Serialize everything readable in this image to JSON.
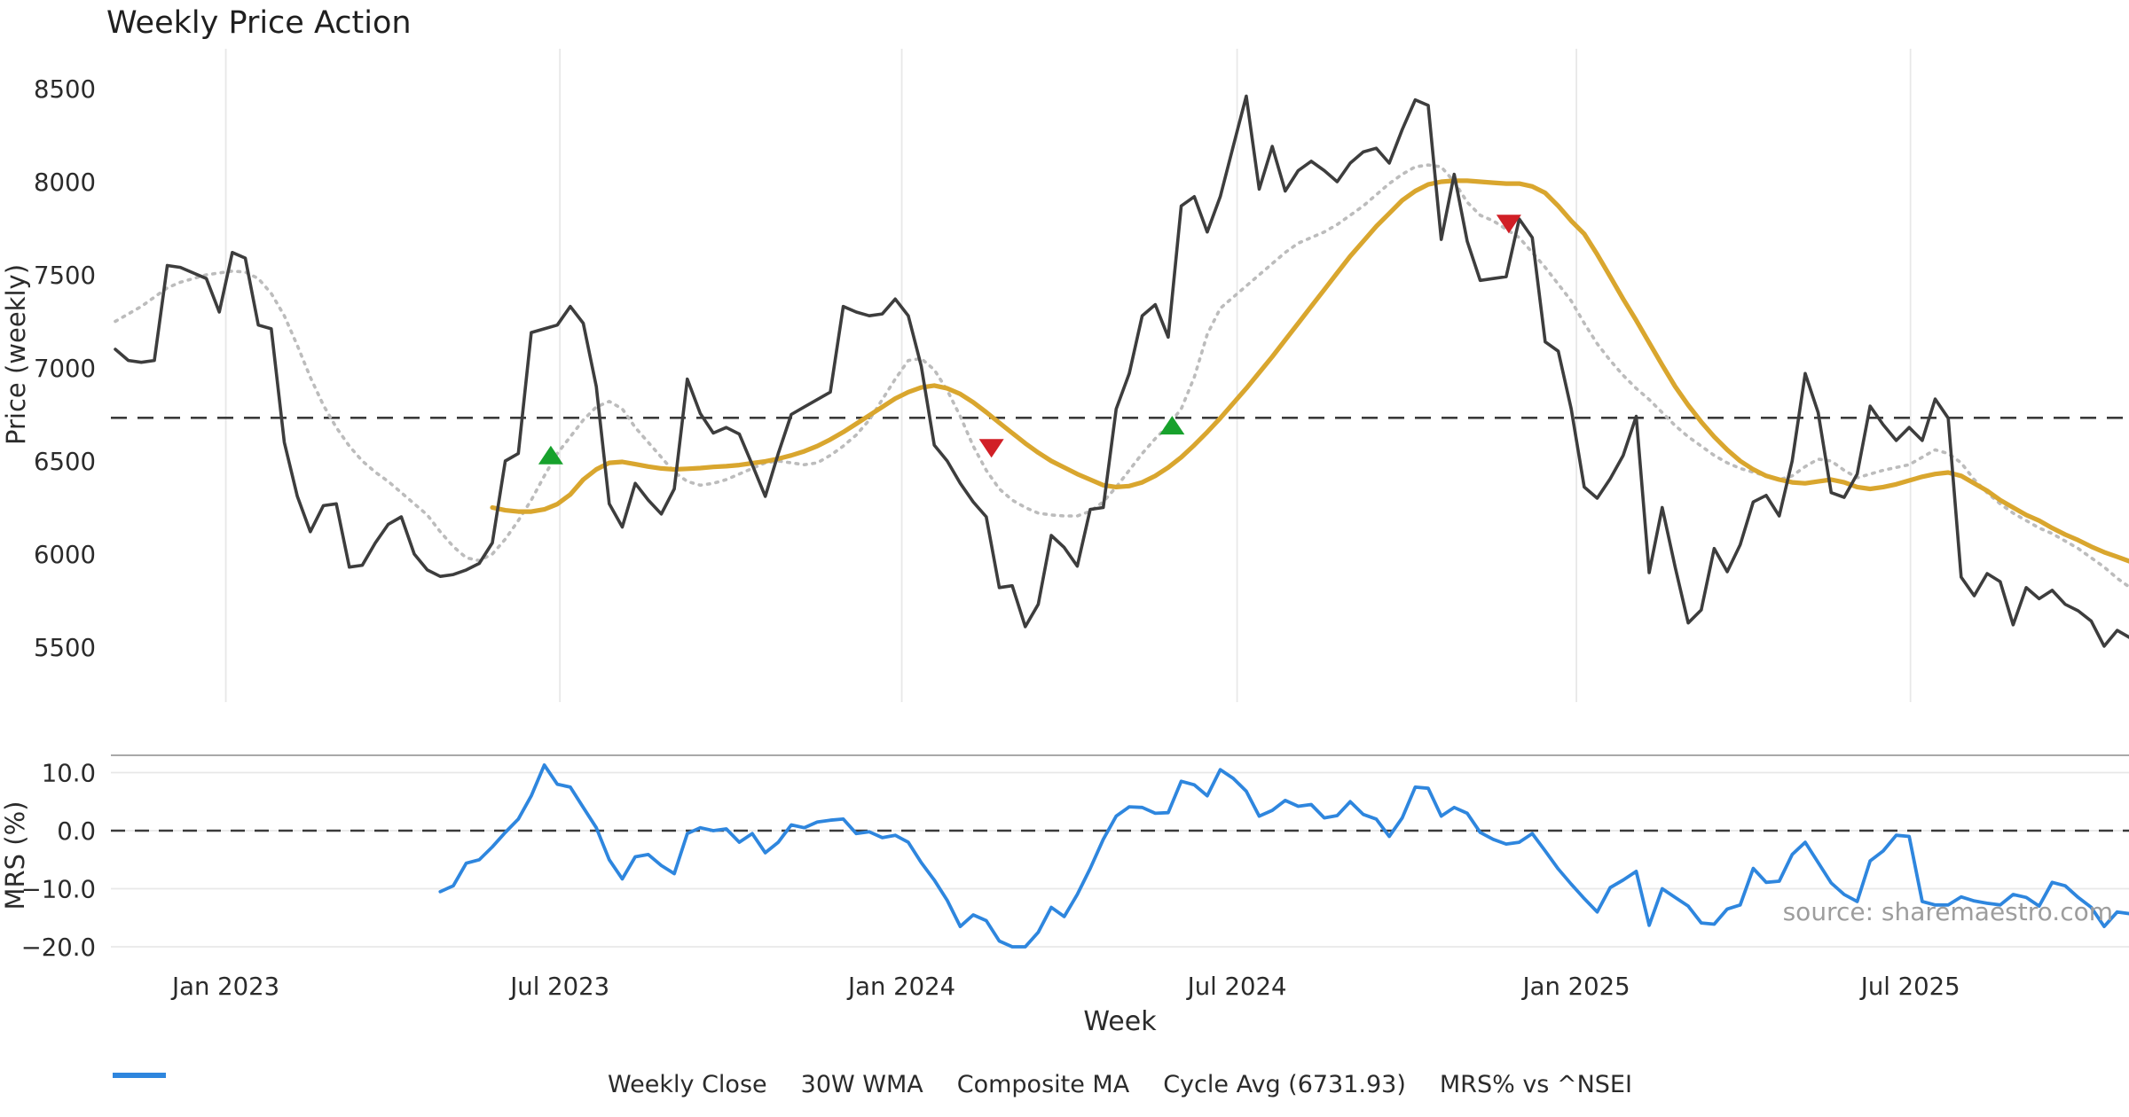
{
  "chart": {
    "title": "Weekly Price Action",
    "price_axis": {
      "label": "Price (weekly)",
      "ticks": [
        8500,
        8000,
        7500,
        7000,
        6500,
        6000,
        5500
      ]
    },
    "mrs_axis": {
      "label": "MRS (%)",
      "ticks": [
        10.0,
        0.0,
        -10.0,
        -20.0
      ],
      "tick_labels": [
        "10.0",
        "0.0",
        "−10.0",
        "−20.0"
      ]
    },
    "x_axis": {
      "label": "Week",
      "tick_labels": [
        "Jan 2023",
        "Jul 2023",
        "Jan 2024",
        "Jul 2024",
        "Jan 2025",
        "Jul 2025"
      ]
    },
    "source": "source: sharemaestro.com",
    "colors": {
      "weekly_close": "#3d3d3d",
      "wma_30w": "#d9a62e",
      "composite_ma": "#bcbcbc",
      "cycle_avg": "#3a3a3a",
      "mrs": "#2e86de",
      "buy_marker": "#17a12c",
      "sell_marker": "#d11f26",
      "grid": "#e8e8e8",
      "panel_spine": "#a8a8a8"
    },
    "legend": {
      "items": [
        {
          "label": "Weekly Close",
          "color": "#3d3d3d",
          "style": "solid"
        },
        {
          "label": "30W WMA",
          "color": "#d9a62e",
          "style": "solid"
        },
        {
          "label": "Composite MA",
          "color": "#bcbcbc",
          "style": "dotted"
        },
        {
          "label": "Cycle Avg (6731.93)",
          "color": "#3a3a3a",
          "style": "dashed"
        },
        {
          "label": "MRS% vs ^NSEI",
          "color": "#2e86de",
          "style": "solid"
        }
      ]
    }
  },
  "chart_data": {
    "type": "line",
    "x_unit": "week-index (weekly data, ~Nov 2022 to Nov 2025)",
    "x_tick_weeks": [
      8.5,
      34.2,
      60.5,
      86.3,
      112.4,
      138.1
    ],
    "price_ylim": [
      5350,
      8700
    ],
    "mrs_ylim": [
      -23,
      13
    ],
    "cycle_avg": 6731.93,
    "series": [
      {
        "name": "Weekly Close",
        "panel": "price",
        "start_week": 0,
        "values": [
          7100,
          7040,
          7030,
          7040,
          7550,
          7540,
          7510,
          7480,
          7300,
          7620,
          7590,
          7230,
          7210,
          6600,
          6310,
          6120,
          6260,
          6270,
          5930,
          5940,
          6060,
          6160,
          6200,
          6000,
          5915,
          5880,
          5890,
          5915,
          5950,
          6060,
          6500,
          6540,
          7190,
          7210,
          7230,
          7330,
          7240,
          6900,
          6270,
          6145,
          6380,
          6290,
          6215,
          6350,
          6940,
          6755,
          6650,
          6680,
          6645,
          6480,
          6310,
          6540,
          6750,
          6790,
          6830,
          6870,
          7330,
          7300,
          7280,
          7290,
          7370,
          7280,
          7010,
          6585,
          6500,
          6380,
          6280,
          6200,
          5820,
          5830,
          5610,
          5730,
          6100,
          6035,
          5935,
          6240,
          6250,
          6780,
          6970,
          7280,
          7340,
          7165,
          7870,
          7920,
          7730,
          7920,
          8190,
          8460,
          7960,
          8190,
          7950,
          8060,
          8110,
          8060,
          8000,
          8100,
          8160,
          8180,
          8100,
          8280,
          8440,
          8410,
          7690,
          8040,
          7680,
          7470,
          7480,
          7490,
          7800,
          7700,
          7140,
          7090,
          6780,
          6360,
          6300,
          6405,
          6530,
          6740,
          5900,
          6250,
          5930,
          5630,
          5700,
          6030,
          5905,
          6050,
          6280,
          6315,
          6205,
          6500,
          6970,
          6760,
          6330,
          6305,
          6430,
          6795,
          6695,
          6610,
          6680,
          6610,
          6833,
          6730,
          5876,
          5776,
          5895,
          5852,
          5620,
          5820,
          5760,
          5805,
          5730,
          5695,
          5640,
          5505,
          5590,
          5550
        ]
      },
      {
        "name": "30W WMA",
        "panel": "price",
        "start_week": 29,
        "values": [
          6250,
          6235,
          6228,
          6228,
          6240,
          6268,
          6320,
          6400,
          6455,
          6490,
          6495,
          6483,
          6470,
          6460,
          6455,
          6458,
          6462,
          6468,
          6472,
          6478,
          6488,
          6498,
          6512,
          6530,
          6552,
          6580,
          6615,
          6655,
          6700,
          6745,
          6790,
          6835,
          6870,
          6895,
          6905,
          6890,
          6860,
          6815,
          6762,
          6705,
          6650,
          6595,
          6545,
          6500,
          6465,
          6430,
          6400,
          6370,
          6360,
          6365,
          6385,
          6420,
          6465,
          6520,
          6585,
          6655,
          6730,
          6810,
          6890,
          6975,
          7060,
          7150,
          7240,
          7330,
          7420,
          7510,
          7600,
          7680,
          7760,
          7830,
          7900,
          7950,
          7985,
          8000,
          8005,
          8005,
          8000,
          7995,
          7990,
          7990,
          7975,
          7940,
          7870,
          7790,
          7720,
          7610,
          7490,
          7370,
          7255,
          7135,
          7015,
          6900,
          6800,
          6710,
          6630,
          6560,
          6500,
          6455,
          6420,
          6400,
          6385,
          6380,
          6390,
          6400,
          6385,
          6360,
          6350,
          6360,
          6375,
          6395,
          6415,
          6430,
          6438,
          6420,
          6380,
          6340,
          6290,
          6250,
          6210,
          6180,
          6140,
          6105,
          6075,
          6040,
          6010,
          5985,
          5960
        ]
      },
      {
        "name": "Composite MA",
        "panel": "price",
        "start_week": 0,
        "values": [
          7250,
          7290,
          7330,
          7380,
          7430,
          7460,
          7480,
          7500,
          7510,
          7520,
          7515,
          7480,
          7400,
          7280,
          7120,
          6950,
          6800,
          6680,
          6580,
          6500,
          6440,
          6390,
          6330,
          6270,
          6210,
          6120,
          6040,
          5980,
          5965,
          6000,
          6080,
          6180,
          6290,
          6420,
          6540,
          6630,
          6720,
          6790,
          6820,
          6780,
          6680,
          6600,
          6520,
          6440,
          6390,
          6370,
          6380,
          6400,
          6430,
          6460,
          6490,
          6500,
          6490,
          6480,
          6490,
          6530,
          6580,
          6640,
          6720,
          6830,
          6940,
          7040,
          7050,
          6990,
          6880,
          6740,
          6580,
          6450,
          6350,
          6290,
          6250,
          6220,
          6210,
          6205,
          6205,
          6230,
          6280,
          6360,
          6450,
          6540,
          6620,
          6690,
          6780,
          6950,
          7180,
          7320,
          7380,
          7440,
          7500,
          7560,
          7620,
          7670,
          7700,
          7730,
          7770,
          7820,
          7870,
          7930,
          7990,
          8040,
          8080,
          8090,
          8080,
          8000,
          7890,
          7820,
          7790,
          7745,
          7700,
          7620,
          7540,
          7450,
          7360,
          7240,
          7130,
          7040,
          6960,
          6890,
          6830,
          6760,
          6690,
          6630,
          6580,
          6530,
          6490,
          6460,
          6440,
          6420,
          6400,
          6420,
          6470,
          6510,
          6500,
          6450,
          6410,
          6430,
          6450,
          6465,
          6480,
          6520,
          6560,
          6540,
          6490,
          6400,
          6330,
          6270,
          6220,
          6180,
          6140,
          6110,
          6070,
          6030,
          5980,
          5930,
          5870,
          5820
        ]
      },
      {
        "name": "MRS% vs ^NSEI",
        "panel": "mrs",
        "start_week": 25,
        "values": [
          -10.5,
          -9.5,
          -5.6,
          -5.0,
          -2.8,
          -0.3,
          2.0,
          6.0,
          11.3,
          8.0,
          7.5,
          4.0,
          0.5,
          -5.0,
          -8.3,
          -4.5,
          -4.1,
          -6.0,
          -7.4,
          -0.5,
          0.5,
          0.0,
          0.3,
          -2.0,
          -0.5,
          -3.8,
          -2.0,
          1.0,
          0.5,
          1.5,
          1.8,
          2.0,
          -0.5,
          -0.2,
          -1.2,
          -0.8,
          -2.0,
          -5.5,
          -8.5,
          -12.0,
          -16.5,
          -14.5,
          -15.5,
          -19.0,
          -20.0,
          -20.0,
          -17.5,
          -13.2,
          -14.8,
          -11.0,
          -6.5,
          -1.5,
          2.5,
          4.1,
          4.0,
          3.0,
          3.1,
          8.5,
          7.9,
          6.0,
          10.5,
          9.0,
          6.8,
          2.5,
          3.5,
          5.2,
          4.2,
          4.5,
          2.2,
          2.6,
          5.0,
          2.8,
          2.0,
          -1.0,
          2.2,
          7.5,
          7.3,
          2.5,
          4.0,
          3.0,
          -0.3,
          -1.5,
          -2.3,
          -2.0,
          -0.5,
          -3.5,
          -6.6,
          -9.2,
          -11.7,
          -14.0,
          -9.8,
          -8.5,
          -7.0,
          -16.3,
          -10.0,
          -11.5,
          -13.0,
          -15.9,
          -16.1,
          -13.5,
          -12.8,
          -6.5,
          -8.9,
          -8.7,
          -4.1,
          -2.0,
          -5.5,
          -9.0,
          -11.0,
          -12.2,
          -5.2,
          -3.5,
          -0.8,
          -1.0,
          -12.2,
          -12.8,
          -12.8,
          -11.4,
          -12.1,
          -12.5,
          -12.8,
          -11.0,
          -11.5,
          -13.0,
          -8.9,
          -9.5,
          -11.5,
          -13.2,
          -16.5,
          -14.0,
          -14.3
        ]
      }
    ],
    "signals": {
      "buy": [
        {
          "week": 33.5,
          "price": 6530
        },
        {
          "week": 81.3,
          "price": 6690
        }
      ],
      "sell": [
        {
          "week": 67.4,
          "price": 6570
        },
        {
          "week": 107.2,
          "price": 7775
        }
      ]
    }
  }
}
